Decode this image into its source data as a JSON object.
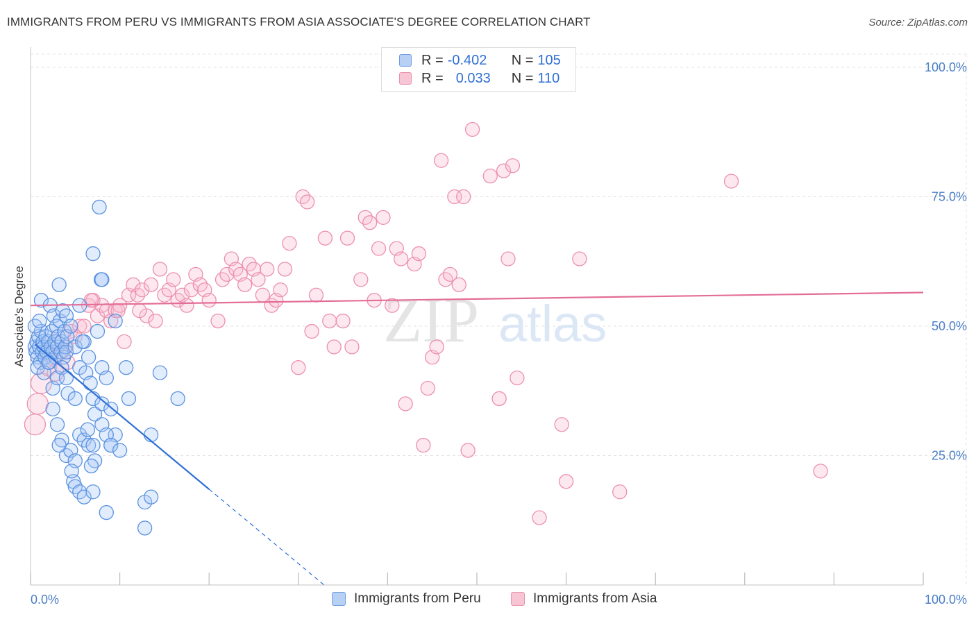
{
  "title": "IMMIGRANTS FROM PERU VS IMMIGRANTS FROM ASIA ASSOCIATE'S DEGREE CORRELATION CHART",
  "source": "Source: ZipAtlas.com",
  "watermark": {
    "zip": "ZIP",
    "atlas": "atlas"
  },
  "legend": {
    "peru": {
      "r_label": "R =",
      "r_value": "-0.402",
      "n_label": "N =",
      "n_value": "105",
      "swatch_fill": "#b8d0f4",
      "swatch_stroke": "#6f9ee0"
    },
    "asia": {
      "r_label": "R =",
      "r_value": "0.033",
      "n_label": "N =",
      "n_value": "110",
      "swatch_fill": "#f8c5d5",
      "swatch_stroke": "#e992b0"
    }
  },
  "chart_data": {
    "type": "scatter",
    "ylabel": "Associate's Degree",
    "xlim": [
      0,
      100
    ],
    "ylim": [
      0,
      100
    ],
    "x_tick_labels": [
      "0.0%",
      "100.0%"
    ],
    "y_ticks": [
      25,
      50,
      75,
      100
    ],
    "y_tick_labels": [
      "25.0%",
      "50.0%",
      "75.0%",
      "100.0%"
    ],
    "grid": true,
    "series": [
      {
        "name": "Immigrants from Peru",
        "color": "#5b92e0",
        "trend": {
          "color": "#2f6fd6",
          "x0": 0.5,
          "y0": 46.5,
          "x1": 20,
          "y1": 18.5,
          "dash_to_x": 33
        },
        "points": [
          [
            0.5,
            46
          ],
          [
            0.6,
            45
          ],
          [
            0.7,
            47
          ],
          [
            0.8,
            44
          ],
          [
            0.9,
            48
          ],
          [
            1.0,
            46
          ],
          [
            1.1,
            43
          ],
          [
            1.2,
            49
          ],
          [
            1.3,
            45
          ],
          [
            1.4,
            47
          ],
          [
            0.5,
            50
          ],
          [
            0.8,
            42
          ],
          [
            1.0,
            51
          ],
          [
            1.2,
            55
          ],
          [
            1.5,
            46
          ],
          [
            1.6,
            44
          ],
          [
            1.7,
            48
          ],
          [
            1.8,
            45
          ],
          [
            2.0,
            47
          ],
          [
            2.1,
            43
          ],
          [
            2.2,
            54
          ],
          [
            2.3,
            46
          ],
          [
            2.4,
            49
          ],
          [
            2.5,
            45
          ],
          [
            2.6,
            52
          ],
          [
            2.7,
            47
          ],
          [
            2.8,
            44
          ],
          [
            2.9,
            50
          ],
          [
            3.0,
            46
          ],
          [
            3.1,
            48
          ],
          [
            3.2,
            58
          ],
          [
            3.3,
            51
          ],
          [
            3.4,
            45
          ],
          [
            3.5,
            47
          ],
          [
            3.6,
            53
          ],
          [
            3.7,
            44
          ],
          [
            3.8,
            49
          ],
          [
            3.9,
            46
          ],
          [
            4.0,
            52
          ],
          [
            4.1,
            48
          ],
          [
            1.5,
            41
          ],
          [
            2.0,
            43
          ],
          [
            2.5,
            38
          ],
          [
            3.0,
            40
          ],
          [
            3.5,
            42
          ],
          [
            4.0,
            45
          ],
          [
            4.5,
            50
          ],
          [
            5.0,
            46
          ],
          [
            5.5,
            54
          ],
          [
            6.0,
            47
          ],
          [
            6.5,
            44
          ],
          [
            5.5,
            42
          ],
          [
            6.2,
            41
          ],
          [
            6.7,
            39
          ],
          [
            7.5,
            49
          ],
          [
            8.0,
            42
          ],
          [
            8.5,
            40
          ],
          [
            4.0,
            40
          ],
          [
            4.2,
            37
          ],
          [
            5.0,
            36
          ],
          [
            7.0,
            36
          ],
          [
            7.2,
            33
          ],
          [
            8.0,
            35
          ],
          [
            9.0,
            34
          ],
          [
            9.5,
            29
          ],
          [
            2.5,
            34
          ],
          [
            3.0,
            31
          ],
          [
            3.5,
            28
          ],
          [
            4.0,
            25
          ],
          [
            4.5,
            26
          ],
          [
            5.0,
            24
          ],
          [
            5.5,
            29
          ],
          [
            6.0,
            28
          ],
          [
            6.5,
            27
          ],
          [
            7.0,
            27
          ],
          [
            7.2,
            24
          ],
          [
            8.0,
            31
          ],
          [
            8.5,
            29
          ],
          [
            9.0,
            27
          ],
          [
            4.8,
            20
          ],
          [
            5.0,
            19
          ],
          [
            5.5,
            18
          ],
          [
            6.0,
            17
          ],
          [
            7.0,
            18
          ],
          [
            8.5,
            14
          ],
          [
            12.8,
            11
          ],
          [
            12.8,
            16
          ],
          [
            13.5,
            17
          ],
          [
            13.5,
            29
          ],
          [
            10.7,
            42
          ],
          [
            11.0,
            36
          ],
          [
            14.5,
            41
          ],
          [
            16.5,
            36
          ],
          [
            7.0,
            64
          ],
          [
            7.9,
            59
          ],
          [
            8.0,
            59
          ],
          [
            7.7,
            73
          ],
          [
            9.5,
            51
          ],
          [
            9.0,
            27
          ],
          [
            10.0,
            26
          ],
          [
            6.4,
            30
          ],
          [
            5.8,
            47
          ],
          [
            6.8,
            23
          ],
          [
            4.6,
            22
          ],
          [
            3.2,
            27
          ]
        ]
      },
      {
        "name": "Immigrants from Asia",
        "color": "#ec8fae",
        "trend": {
          "color": "#e36d98",
          "x0": 0,
          "y0": 54,
          "x1": 100,
          "y1": 56.5
        },
        "points": [
          [
            0.5,
            31
          ],
          [
            0.8,
            35
          ],
          [
            1.2,
            39
          ],
          [
            2.0,
            42
          ],
          [
            2.5,
            44
          ],
          [
            3.0,
            47
          ],
          [
            3.5,
            45
          ],
          [
            4.0,
            46
          ],
          [
            4.5,
            49
          ],
          [
            5.0,
            48
          ],
          [
            5.5,
            50
          ],
          [
            6.0,
            50
          ],
          [
            6.5,
            54
          ],
          [
            7.0,
            55
          ],
          [
            7.5,
            52
          ],
          [
            8.0,
            54
          ],
          [
            8.5,
            53
          ],
          [
            9.0,
            51
          ],
          [
            9.5,
            53
          ],
          [
            10.0,
            54
          ],
          [
            10.5,
            47
          ],
          [
            11.0,
            56
          ],
          [
            11.5,
            58
          ],
          [
            12.0,
            56
          ],
          [
            12.5,
            57
          ],
          [
            13.0,
            52
          ],
          [
            13.5,
            58
          ],
          [
            14.0,
            51
          ],
          [
            14.5,
            61
          ],
          [
            15.0,
            56
          ],
          [
            15.5,
            57
          ],
          [
            16.0,
            59
          ],
          [
            16.5,
            55
          ],
          [
            17.0,
            56
          ],
          [
            17.5,
            54
          ],
          [
            18.0,
            57
          ],
          [
            18.5,
            60
          ],
          [
            19.0,
            58
          ],
          [
            19.5,
            57
          ],
          [
            20.0,
            55
          ],
          [
            21.0,
            51
          ],
          [
            21.5,
            59
          ],
          [
            22.0,
            60
          ],
          [
            22.5,
            63
          ],
          [
            23.0,
            61
          ],
          [
            23.5,
            60
          ],
          [
            24.0,
            58
          ],
          [
            24.5,
            62
          ],
          [
            25.0,
            61
          ],
          [
            25.5,
            59
          ],
          [
            26.0,
            56
          ],
          [
            26.5,
            61
          ],
          [
            27.0,
            54
          ],
          [
            27.5,
            55
          ],
          [
            28.0,
            57
          ],
          [
            28.5,
            61
          ],
          [
            29.0,
            66
          ],
          [
            30.0,
            42
          ],
          [
            30.5,
            75
          ],
          [
            31.0,
            74
          ],
          [
            31.5,
            49
          ],
          [
            32.0,
            56
          ],
          [
            33.0,
            67
          ],
          [
            33.5,
            51
          ],
          [
            34.0,
            46
          ],
          [
            35.0,
            51
          ],
          [
            35.5,
            67
          ],
          [
            36.0,
            46
          ],
          [
            37.0,
            59
          ],
          [
            37.5,
            71
          ],
          [
            38.0,
            70
          ],
          [
            38.5,
            55
          ],
          [
            39.0,
            65
          ],
          [
            39.5,
            71
          ],
          [
            40.5,
            54
          ],
          [
            41.0,
            65
          ],
          [
            41.5,
            63
          ],
          [
            42.0,
            35
          ],
          [
            43.0,
            62
          ],
          [
            43.5,
            64
          ],
          [
            44.0,
            27
          ],
          [
            44.5,
            38
          ],
          [
            45.0,
            44
          ],
          [
            45.5,
            46
          ],
          [
            46.0,
            82
          ],
          [
            46.5,
            59
          ],
          [
            47.0,
            60
          ],
          [
            47.5,
            75
          ],
          [
            48.0,
            58
          ],
          [
            48.5,
            75
          ],
          [
            49.0,
            26
          ],
          [
            49.5,
            88
          ],
          [
            51.5,
            79
          ],
          [
            52.5,
            36
          ],
          [
            53.0,
            80
          ],
          [
            53.5,
            63
          ],
          [
            54.0,
            81
          ],
          [
            54.5,
            40
          ],
          [
            57.0,
            13
          ],
          [
            59.5,
            31
          ],
          [
            60.0,
            20
          ],
          [
            61.5,
            63
          ],
          [
            66.0,
            18
          ],
          [
            78.5,
            78
          ],
          [
            88.5,
            22
          ],
          [
            2.8,
            41
          ],
          [
            4.2,
            43
          ],
          [
            6.8,
            55
          ],
          [
            9.8,
            53
          ],
          [
            12.2,
            53
          ]
        ]
      }
    ]
  },
  "bottom_legend": [
    "Immigrants from Peru",
    "Immigrants from Asia"
  ]
}
